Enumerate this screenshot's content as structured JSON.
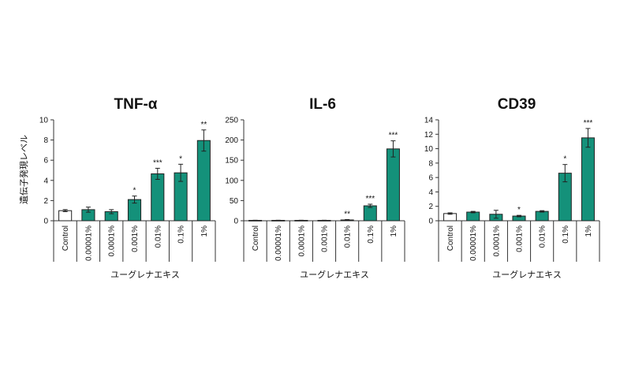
{
  "figure": {
    "ylabel": "遺伝子発現レベル",
    "colors": {
      "treatment": "#14917a",
      "control": "#ffffff",
      "stroke": "#222222",
      "axis": "#333333"
    }
  },
  "chart_data": [
    {
      "type": "bar",
      "title": "TNF-α",
      "xlabel": "ユーグレナエキス",
      "ylabel": "遺伝子発現レベル",
      "ylim": [
        0,
        10
      ],
      "yticks": [
        0,
        2,
        4,
        6,
        8,
        10
      ],
      "categories": [
        "Control",
        "0.00001%",
        "0.0001%",
        "0.001%",
        "0.01%",
        "0.1%",
        "1%"
      ],
      "values": [
        1.0,
        1.1,
        0.9,
        2.1,
        4.65,
        4.75,
        7.95
      ],
      "errors": [
        0.1,
        0.25,
        0.2,
        0.35,
        0.55,
        0.85,
        1.05
      ],
      "significance": [
        "",
        "",
        "",
        "*",
        "***",
        "*",
        "**"
      ],
      "grid": false,
      "legend": "none"
    },
    {
      "type": "bar",
      "title": "IL-6",
      "xlabel": "ユーグレナエキス",
      "ylabel": "",
      "ylim": [
        0,
        250
      ],
      "yticks": [
        0,
        50,
        100,
        150,
        200,
        250
      ],
      "categories": [
        "Control",
        "0.00001%",
        "0.0001%",
        "0.001%",
        "0.01%",
        "0.1%",
        "1%"
      ],
      "values": [
        1,
        1,
        1,
        1,
        2,
        37,
        178
      ],
      "errors": [
        0.3,
        0.3,
        0.3,
        0.3,
        1,
        4,
        20
      ],
      "significance": [
        "",
        "",
        "",
        "",
        "**",
        "***",
        "***"
      ],
      "grid": false,
      "legend": "none"
    },
    {
      "type": "bar",
      "title": "CD39",
      "xlabel": "ユーグレナエキス",
      "ylabel": "",
      "ylim": [
        0,
        14
      ],
      "yticks": [
        0,
        2,
        4,
        6,
        8,
        10,
        12,
        14
      ],
      "categories": [
        "Control",
        "0.00001%",
        "0.0001%",
        "0.001%",
        "0.01%",
        "0.1%",
        "1%"
      ],
      "values": [
        1.0,
        1.2,
        0.9,
        0.65,
        1.3,
        6.6,
        11.5
      ],
      "errors": [
        0.1,
        0.1,
        0.55,
        0.1,
        0.1,
        1.2,
        1.3
      ],
      "significance": [
        "",
        "",
        "",
        "*",
        "",
        "*",
        "***"
      ],
      "grid": false,
      "legend": "none"
    }
  ]
}
